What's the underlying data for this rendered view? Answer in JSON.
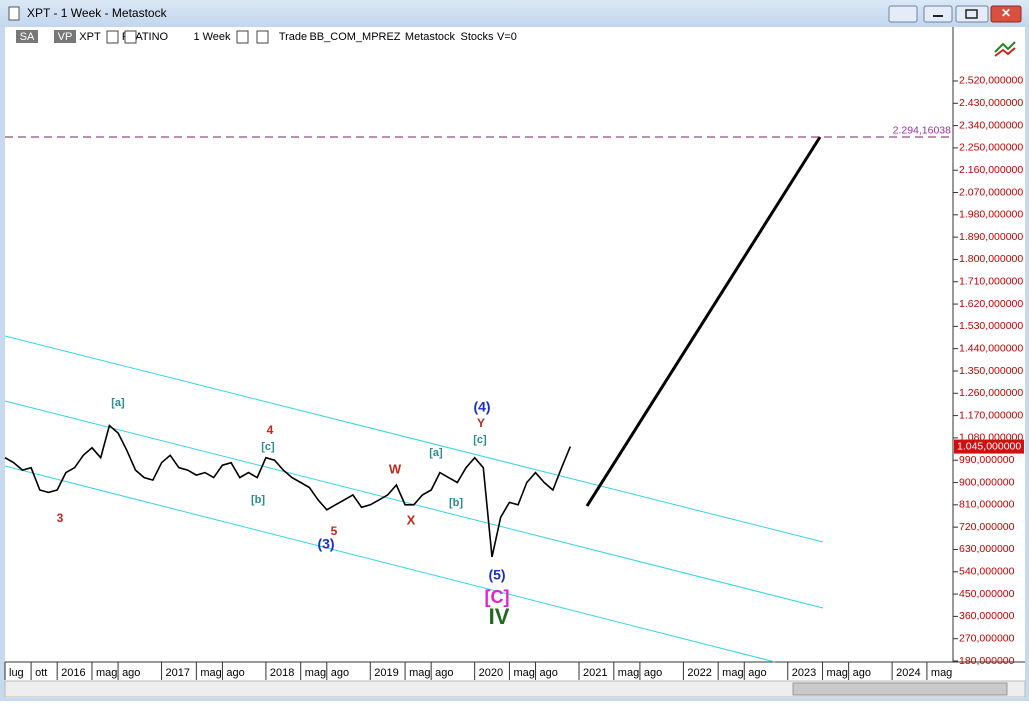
{
  "window": {
    "title": "XPT - 1 Week - Metastock"
  },
  "toolbar": [
    "SA",
    "VP",
    "XPT",
    "PLATINO",
    "1 Week",
    "Trade",
    "BB_COM_MPREZ",
    "Metastock",
    "Stocks",
    "V=0"
  ],
  "chart_data": {
    "type": "line",
    "x": [
      "2015-07",
      "2015-08",
      "2015-09",
      "2015-10",
      "2015-11",
      "2015-12",
      "2016-01",
      "2016-02",
      "2016-03",
      "2016-04",
      "2016-05",
      "2016-06",
      "2016-07",
      "2016-08",
      "2016-09",
      "2016-10",
      "2016-11",
      "2016-12",
      "2017-01",
      "2017-02",
      "2017-03",
      "2017-04",
      "2017-05",
      "2017-06",
      "2017-07",
      "2017-08",
      "2017-09",
      "2017-10",
      "2017-11",
      "2017-12",
      "2018-01",
      "2018-02",
      "2018-03",
      "2018-04",
      "2018-05",
      "2018-06",
      "2018-07",
      "2018-08",
      "2018-09",
      "2018-10",
      "2018-11",
      "2018-12",
      "2019-01",
      "2019-02",
      "2019-03",
      "2019-04",
      "2019-05",
      "2019-06",
      "2019-07",
      "2019-08",
      "2019-09",
      "2019-10",
      "2019-11",
      "2019-12",
      "2020-01",
      "2020-02",
      "2020-03",
      "2020-04",
      "2020-05",
      "2020-06",
      "2020-07",
      "2020-08",
      "2020-09",
      "2020-10",
      "2020-11",
      "2020-12"
    ],
    "series": [
      {
        "name": "XPT",
        "color": "#000000",
        "values": [
          1000,
          980,
          950,
          960,
          870,
          860,
          870,
          940,
          960,
          1010,
          1040,
          1000,
          1130,
          1100,
          1030,
          950,
          920,
          910,
          980,
          1010,
          960,
          950,
          930,
          940,
          920,
          970,
          980,
          920,
          940,
          920,
          1000,
          990,
          950,
          920,
          900,
          880,
          830,
          790,
          810,
          830,
          850,
          800,
          810,
          830,
          850,
          890,
          810,
          810,
          850,
          870,
          940,
          920,
          900,
          960,
          1000,
          960,
          600,
          760,
          820,
          810,
          900,
          940,
          900,
          870,
          960,
          1045
        ]
      }
    ],
    "last_price": {
      "value": 1045,
      "label": "1.045,000000"
    },
    "target_level": {
      "value": 2294.16038,
      "label": "2.294,16038"
    },
    "xlim": [
      "2015-07",
      "2024-08"
    ],
    "xticks": [
      {
        "value": "2015-07",
        "label": "lug"
      },
      {
        "value": "2015-10",
        "label": "ott"
      },
      {
        "value": "2016-01",
        "label": "2016"
      },
      {
        "value": "2016-05",
        "label": "mag"
      },
      {
        "value": "2016-08",
        "label": "ago"
      },
      {
        "value": "2017-01",
        "label": "2017"
      },
      {
        "value": "2017-05",
        "label": "mag"
      },
      {
        "value": "2017-08",
        "label": "ago"
      },
      {
        "value": "2018-01",
        "label": "2018"
      },
      {
        "value": "2018-05",
        "label": "mag"
      },
      {
        "value": "2018-08",
        "label": "ago"
      },
      {
        "value": "2019-01",
        "label": "2019"
      },
      {
        "value": "2019-05",
        "label": "mag"
      },
      {
        "value": "2019-08",
        "label": "ago"
      },
      {
        "value": "2020-01",
        "label": "2020"
      },
      {
        "value": "2020-05",
        "label": "mag"
      },
      {
        "value": "2020-08",
        "label": "ago"
      },
      {
        "value": "2021-01",
        "label": "2021"
      },
      {
        "value": "2021-05",
        "label": "mag"
      },
      {
        "value": "2021-08",
        "label": "ago"
      },
      {
        "value": "2022-01",
        "label": "2022"
      },
      {
        "value": "2022-05",
        "label": "mag"
      },
      {
        "value": "2022-08",
        "label": "ago"
      },
      {
        "value": "2023-01",
        "label": "2023"
      },
      {
        "value": "2023-05",
        "label": "mag"
      },
      {
        "value": "2023-08",
        "label": "ago"
      },
      {
        "value": "2024-01",
        "label": "2024"
      },
      {
        "value": "2024-05",
        "label": "mag"
      }
    ],
    "ylim": [
      176,
      2653
    ],
    "yticks": [
      {
        "value": 180,
        "label": "180,000000"
      },
      {
        "value": 270,
        "label": "270,000000"
      },
      {
        "value": 360,
        "label": "360,000000"
      },
      {
        "value": 450,
        "label": "450,000000"
      },
      {
        "value": 540,
        "label": "540,000000"
      },
      {
        "value": 630,
        "label": "630,000000"
      },
      {
        "value": 720,
        "label": "720,000000"
      },
      {
        "value": 810,
        "label": "810,000000"
      },
      {
        "value": 900,
        "label": "900,000000"
      },
      {
        "value": 990,
        "label": "990,000000"
      },
      {
        "value": 1080,
        "label": "1.080,000000"
      },
      {
        "value": 1170,
        "label": "1.170,000000"
      },
      {
        "value": 1260,
        "label": "1.260,000000"
      },
      {
        "value": 1350,
        "label": "1.350,000000"
      },
      {
        "value": 1440,
        "label": "1.440,000000"
      },
      {
        "value": 1530,
        "label": "1.530,000000"
      },
      {
        "value": 1620,
        "label": "1.620,000000"
      },
      {
        "value": 1710,
        "label": "1.710,000000"
      },
      {
        "value": 1800,
        "label": "1.800,000000"
      },
      {
        "value": 1890,
        "label": "1.890,000000"
      },
      {
        "value": 1980,
        "label": "1.980,000000"
      },
      {
        "value": 2070,
        "label": "2.070,000000"
      },
      {
        "value": 2160,
        "label": "2.160,000000"
      },
      {
        "value": 2250,
        "label": "2.250,000000"
      },
      {
        "value": 2340,
        "label": "2.340,000000"
      },
      {
        "value": 2430,
        "label": "2.430,000000"
      },
      {
        "value": 2520,
        "label": "2.520,000000"
      }
    ],
    "annotations": [
      {
        "text": "3",
        "color": "#c0281e"
      },
      {
        "text": "[a]",
        "color": "#2a8c8c"
      },
      {
        "text": "4",
        "color": "#c0281e"
      },
      {
        "text": "[c]",
        "color": "#2a8c8c"
      },
      {
        "text": "[b]",
        "color": "#2a8c8c"
      },
      {
        "text": "5",
        "color": "#c0281e"
      },
      {
        "text": "(3)",
        "color": "#1a2fc8"
      },
      {
        "text": "W",
        "color": "#c0281e"
      },
      {
        "text": "X",
        "color": "#c0281e"
      },
      {
        "text": "[a]",
        "color": "#2a8c8c"
      },
      {
        "text": "[b]",
        "color": "#2a8c8c"
      },
      {
        "text": "(4)",
        "color": "#1a2fc8"
      },
      {
        "text": "Y",
        "color": "#c0281e"
      },
      {
        "text": "[c]",
        "color": "#2a8c8c"
      },
      {
        "text": "(5)",
        "color": "#1a2fc8"
      },
      {
        "text": "[C]",
        "color": "#e020d0"
      },
      {
        "text": "IV",
        "color": "#1e6a1e"
      }
    ]
  }
}
